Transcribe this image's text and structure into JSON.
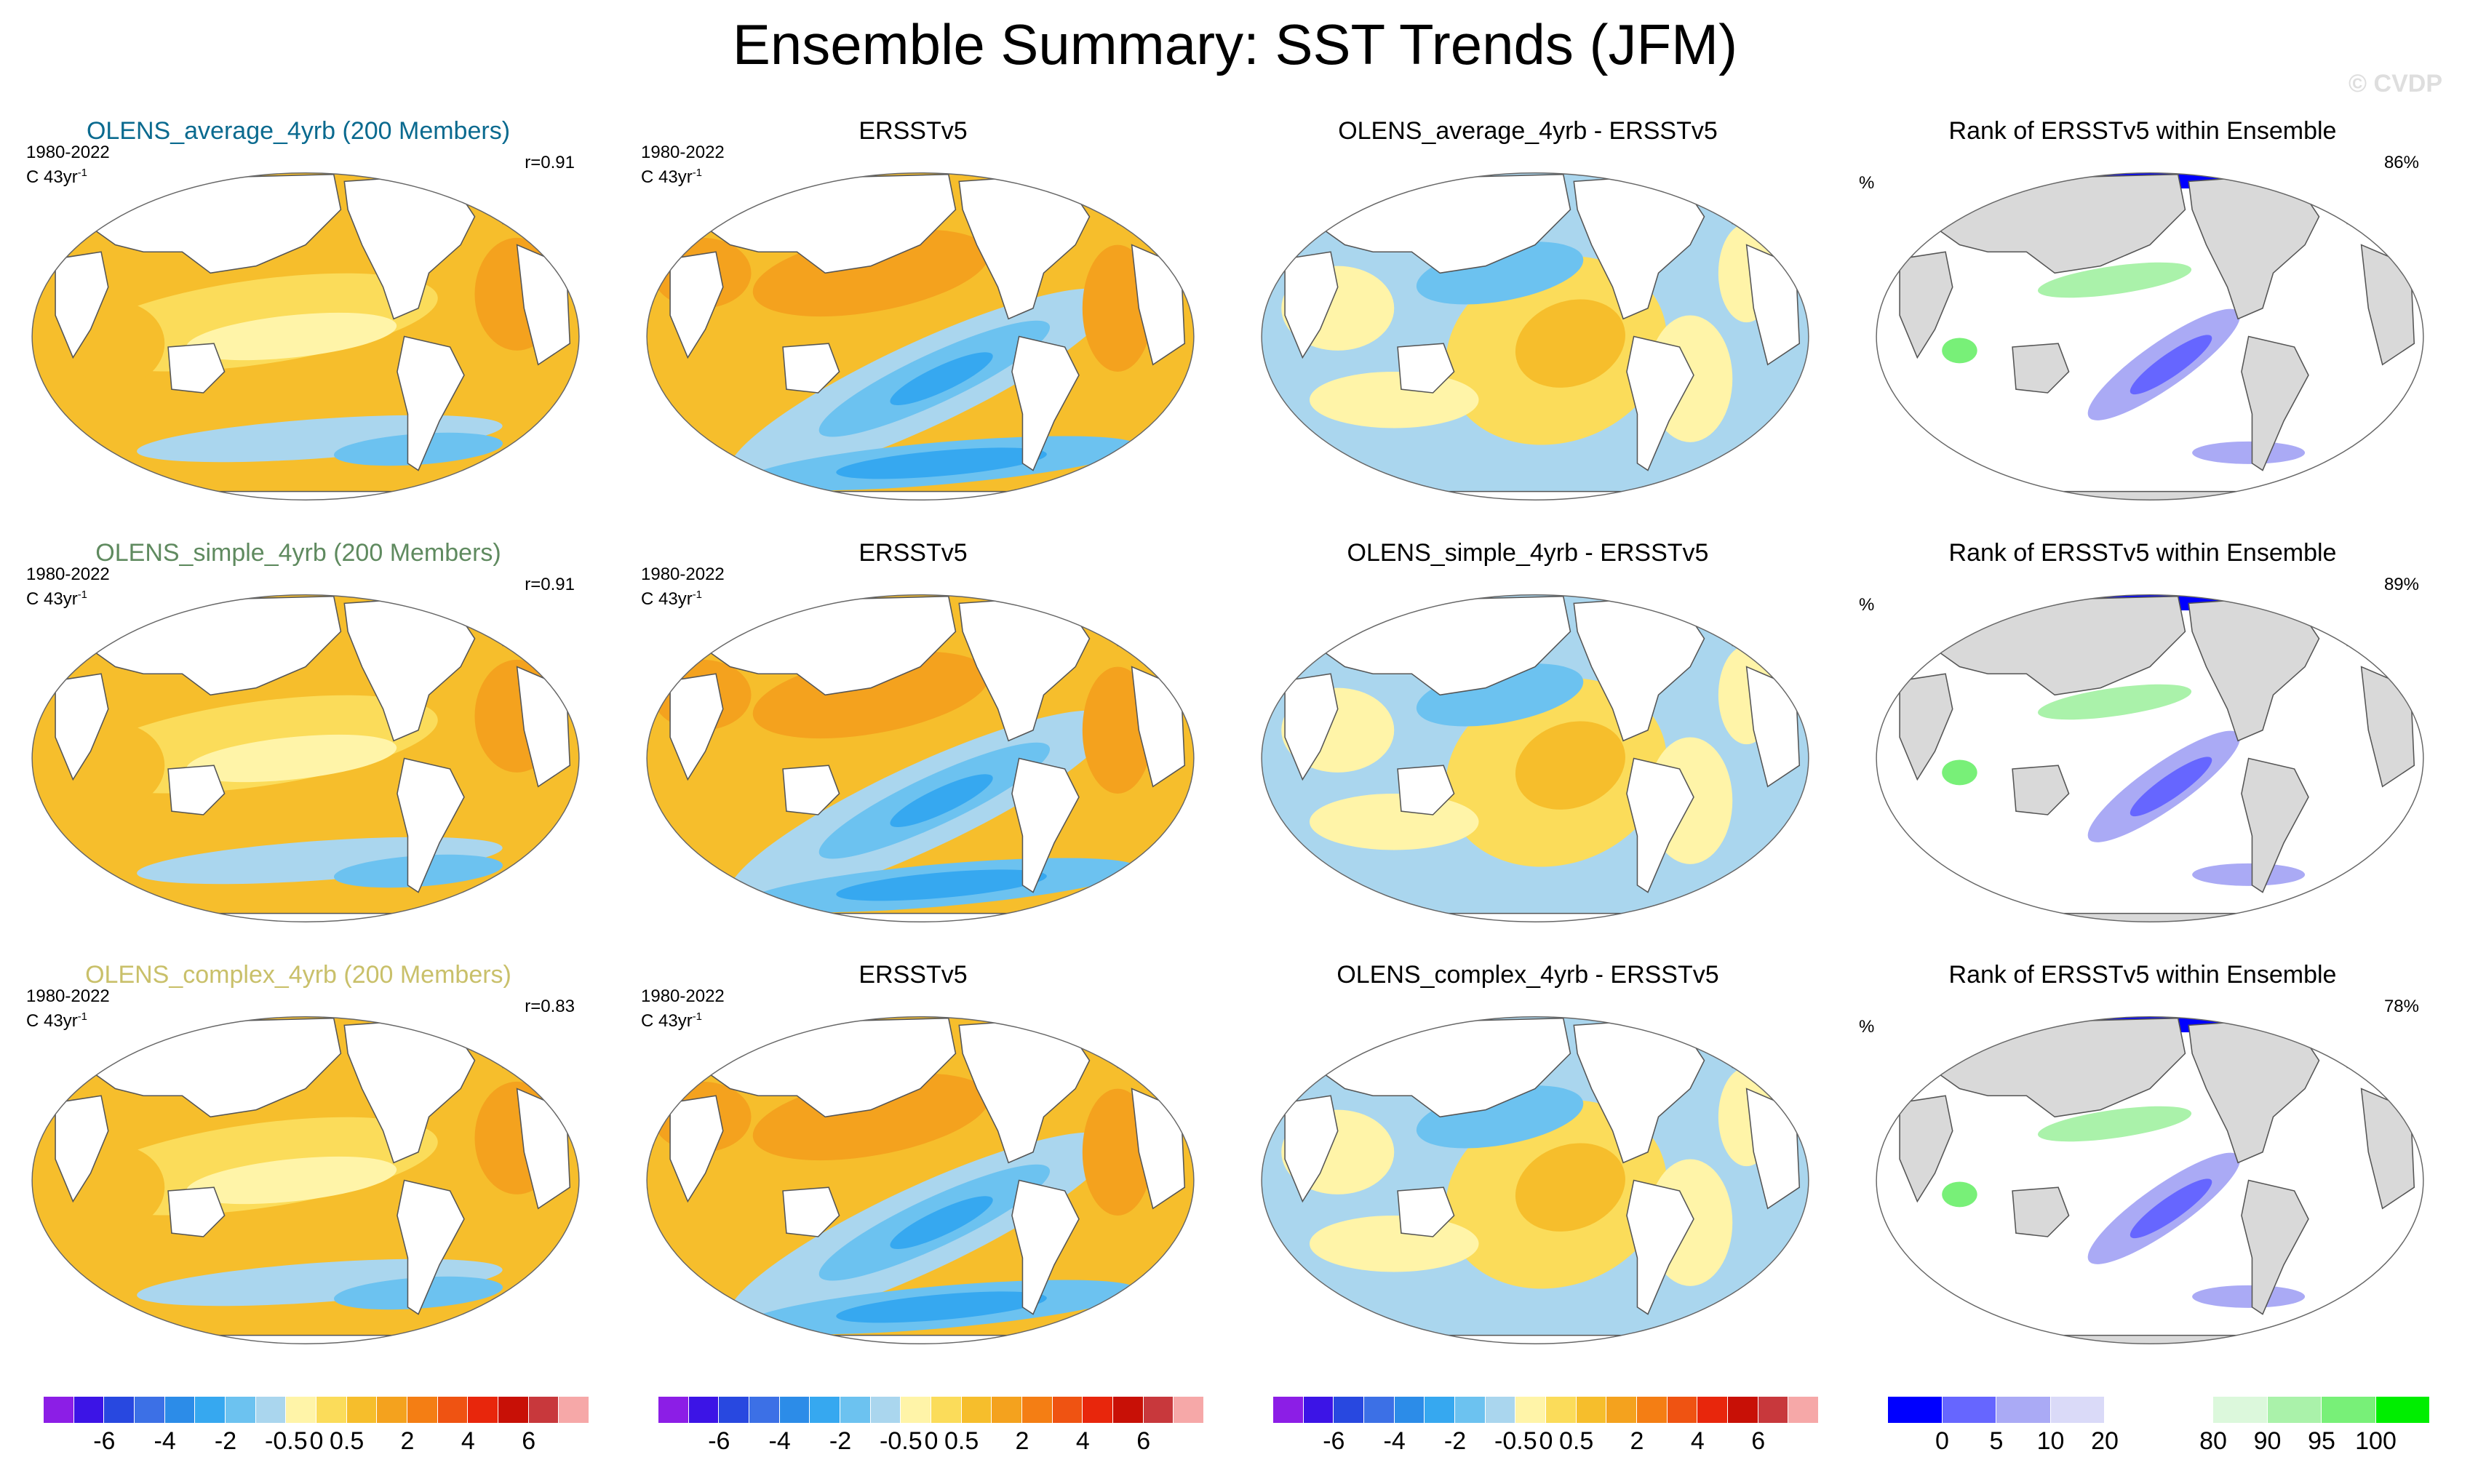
{
  "title": "Ensemble Summary: SST Trends (JFM)",
  "watermark": "© CVDP",
  "colors": {
    "average": "#0a6a8f",
    "simple": "#5f8a5f",
    "complex": "#c9c06a",
    "land_trend": "#ffffff",
    "land_rank": "#d9d9d9",
    "coast": "#555555"
  },
  "panel_info": {
    "years": "1980-2022",
    "units": "C 43yr",
    "units_exp": "-1",
    "pct_symbol": "%"
  },
  "rows": [
    {
      "model": {
        "title": "OLENS_average_4yrb (200 Members)",
        "corr": "r=0.91",
        "color_key": "average"
      },
      "obs": {
        "title": "ERSSTv5"
      },
      "diff": {
        "title": "OLENS_average_4yrb - ERSSTv5"
      },
      "rank": {
        "title": "Rank of ERSSTv5 within Ensemble",
        "pct": "86%"
      }
    },
    {
      "model": {
        "title": "OLENS_simple_4yrb (200 Members)",
        "corr": "r=0.91",
        "color_key": "simple"
      },
      "obs": {
        "title": "ERSSTv5"
      },
      "diff": {
        "title": "OLENS_simple_4yrb - ERSSTv5"
      },
      "rank": {
        "title": "Rank of ERSSTv5 within Ensemble",
        "pct": "89%"
      }
    },
    {
      "model": {
        "title": "OLENS_complex_4yrb (200 Members)",
        "corr": "r=0.83",
        "color_key": "complex"
      },
      "obs": {
        "title": "ERSSTv5"
      },
      "diff": {
        "title": "OLENS_complex_4yrb - ERSSTv5"
      },
      "rank": {
        "title": "Rank of ERSSTv5 within Ensemble",
        "pct": "78%"
      }
    }
  ],
  "colorbars": {
    "trend": {
      "colors": [
        "#8c1ee6",
        "#3c14e6",
        "#2848e0",
        "#3c70e6",
        "#2c8ce8",
        "#36a8f0",
        "#6cc2f0",
        "#aad6ee",
        "#fff4a8",
        "#fbdc5a",
        "#f6be2c",
        "#f4a21e",
        "#f47e14",
        "#ef5312",
        "#e8260c",
        "#c81006",
        "#c8383c",
        "#f6a8a8"
      ],
      "labels": [
        "-6",
        "-4",
        "-2",
        "-0.5",
        "0",
        "0.5",
        "2",
        "4",
        "6"
      ],
      "label_after_index": [
        1,
        3,
        5,
        7,
        8,
        9,
        11,
        13,
        15
      ]
    },
    "rank": {
      "colors": [
        "#0000ff",
        "#6666ff",
        "#aaaaf5",
        "#dadaf8",
        "#ffffff",
        "#ffffff",
        "#dcf8dc",
        "#aaf2aa",
        "#78f078",
        "#00ee00"
      ],
      "labels": [
        "0",
        "5",
        "10",
        "20",
        "80",
        "90",
        "95",
        "100"
      ],
      "label_after_index": [
        0,
        1,
        2,
        3,
        5,
        6,
        7,
        8
      ]
    }
  }
}
